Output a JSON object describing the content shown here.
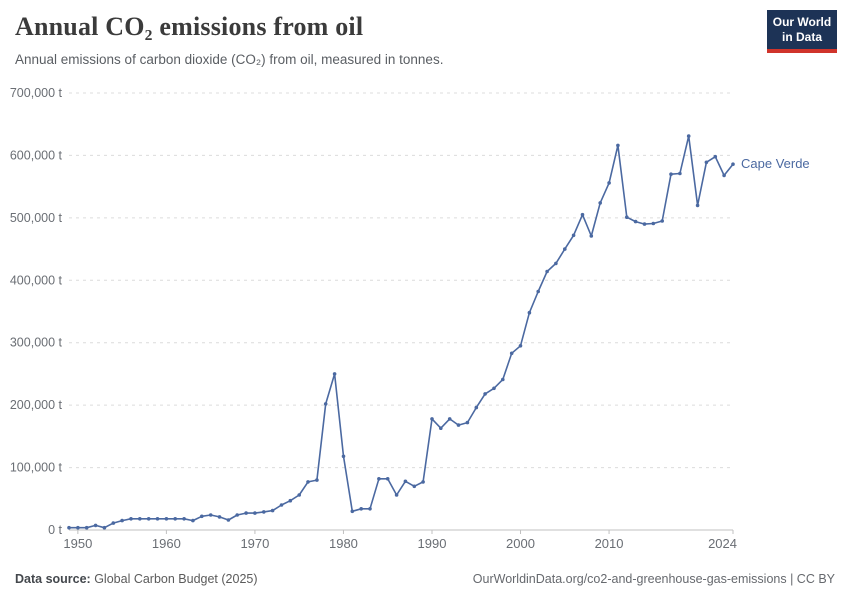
{
  "header": {
    "title": "Annual CO₂ emissions from oil",
    "subtitle": "Annual emissions of carbon dioxide (CO₂) from oil, measured in tonnes.",
    "logo": {
      "line1": "Our World",
      "line2": "in Data"
    }
  },
  "footer": {
    "source_label": "Data source:",
    "source_value": " Global Carbon Budget (2025)",
    "link": "OurWorldinData.org/co2-and-greenhouse-gas-emissions | CC BY"
  },
  "chart_data": {
    "type": "line",
    "title": "Annual CO₂ emissions from oil",
    "entity": "Cape Verde",
    "series_label": "Cape Verde",
    "unit": "t",
    "xlim": [
      1949,
      2024
    ],
    "ylim": [
      0,
      700000
    ],
    "grid": "horizontal-dashed",
    "legend_position": "end-of-line",
    "x_ticks": [
      {
        "value": 1950,
        "label": "1950"
      },
      {
        "value": 1960,
        "label": "1960"
      },
      {
        "value": 1970,
        "label": "1970"
      },
      {
        "value": 1980,
        "label": "1980"
      },
      {
        "value": 1990,
        "label": "1990"
      },
      {
        "value": 2000,
        "label": "2000"
      },
      {
        "value": 2010,
        "label": "2010"
      },
      {
        "value": 2024,
        "label": "2024"
      }
    ],
    "y_ticks": [
      {
        "value": 0,
        "label": "0 t"
      },
      {
        "value": 100000,
        "label": "100,000 t"
      },
      {
        "value": 200000,
        "label": "200,000 t"
      },
      {
        "value": 300000,
        "label": "300,000 t"
      },
      {
        "value": 400000,
        "label": "400,000 t"
      },
      {
        "value": 500000,
        "label": "500,000 t"
      },
      {
        "value": 600000,
        "label": "600,000 t"
      },
      {
        "value": 700000,
        "label": "700,000 t"
      }
    ],
    "x": [
      1949,
      1950,
      1951,
      1952,
      1953,
      1954,
      1955,
      1956,
      1957,
      1958,
      1959,
      1960,
      1961,
      1962,
      1963,
      1964,
      1965,
      1966,
      1967,
      1968,
      1969,
      1970,
      1971,
      1972,
      1973,
      1974,
      1975,
      1976,
      1977,
      1978,
      1979,
      1980,
      1981,
      1982,
      1983,
      1984,
      1985,
      1986,
      1987,
      1988,
      1989,
      1990,
      1991,
      1992,
      1993,
      1994,
      1995,
      1996,
      1997,
      1998,
      1999,
      2000,
      2001,
      2002,
      2003,
      2004,
      2005,
      2006,
      2007,
      2008,
      2009,
      2010,
      2011,
      2012,
      2013,
      2014,
      2015,
      2016,
      2017,
      2018,
      2019,
      2020,
      2021,
      2022,
      2023,
      2024
    ],
    "values": [
      3700,
      3700,
      3700,
      7300,
      3700,
      11000,
      15000,
      18000,
      18000,
      18000,
      18000,
      18000,
      18000,
      18000,
      15000,
      22000,
      24000,
      21000,
      16000,
      24000,
      27000,
      27000,
      29000,
      31000,
      40000,
      47000,
      56000,
      77000,
      80000,
      202000,
      250000,
      118000,
      30000,
      34000,
      34000,
      82000,
      82000,
      56000,
      78000,
      70000,
      77000,
      178000,
      163000,
      178000,
      168000,
      172000,
      196000,
      218000,
      227000,
      241000,
      283000,
      295000,
      348000,
      382000,
      414000,
      427000,
      450000,
      472000,
      505000,
      471000,
      524000,
      556000,
      616000,
      501000,
      494000,
      490000,
      491000,
      495000,
      570000,
      571000,
      631000,
      520000,
      589000,
      598000,
      568000,
      586000
    ],
    "colors": {
      "line": "#4b69a1",
      "grid": "#dcdcdc",
      "axis": "#c0c0c0",
      "tick_label": "#6a6e74",
      "logo_bg": "#1d3356",
      "logo_accent": "#d0342b"
    }
  }
}
